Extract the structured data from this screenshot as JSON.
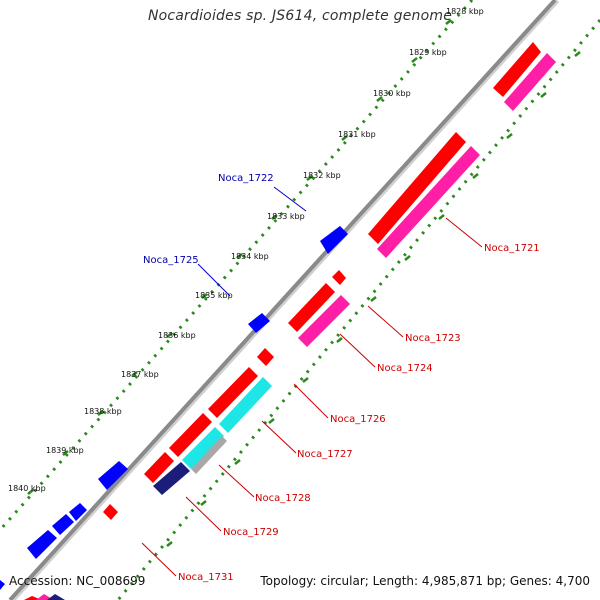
{
  "title": "Nocardioides sp. JS614, complete genome",
  "accession": "Accession: NC_008699",
  "topology": "Topology: circular; Length: 4,985,871 bp; Genes: 4,700",
  "colors": {
    "background": "#ffffff",
    "backbone": "#8a8a8a",
    "tick_dots": "#2a8a1e",
    "forward_cds": "#ff0000",
    "reverse_cds": "#0000ff",
    "rna_pink": "#ff1fa6",
    "rna_cyan": "#1ee6e6",
    "gray_feature": "#a8a8a8",
    "navy_feature": "#1c1c7a",
    "label_red": "#cc0000",
    "label_blue": "#0000aa"
  },
  "ticks": [
    "1828 kbp",
    "1829 kbp",
    "1830 kbp",
    "1831 kbp",
    "1832 kbp",
    "1833 kbp",
    "1834 kbp",
    "1835 kbp",
    "1836 kbp",
    "1837 kbp",
    "1838 kbp",
    "1839 kbp",
    "1840 kbp"
  ],
  "gene_labels": {
    "noca_1721": "Noca_1721",
    "noca_1722": "Noca_1722",
    "noca_1723": "Noca_1723",
    "noca_1724": "Noca_1724",
    "noca_1725": "Noca_1725",
    "noca_1726": "Noca_1726",
    "noca_1727": "Noca_1727",
    "noca_1728": "Noca_1728",
    "noca_1729": "Noca_1729",
    "noca_1731": "Noca_1731"
  }
}
